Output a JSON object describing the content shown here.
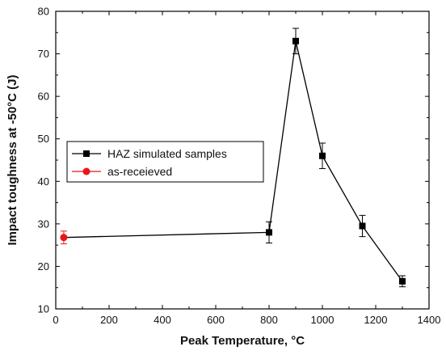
{
  "chart_data": {
    "type": "scatter",
    "xlabel": "Peak Temperature, °C",
    "ylabel": "Impact toughness at -50°C (J)",
    "xlim": [
      0,
      1400
    ],
    "ylim": [
      10,
      80
    ],
    "x_ticks": [
      0,
      200,
      400,
      600,
      800,
      1000,
      1200,
      1400
    ],
    "y_ticks": [
      10,
      20,
      30,
      40,
      50,
      60,
      70,
      80
    ],
    "grid": false,
    "legend_position": "center-left",
    "series": [
      {
        "name": "HAZ simulated samples",
        "marker": "square",
        "line": true,
        "color": "#000000",
        "points": [
          {
            "x": 800,
            "y": 28.0,
            "err": 2.5
          },
          {
            "x": 900,
            "y": 73.0,
            "err": 3.0
          },
          {
            "x": 1000,
            "y": 46.0,
            "err": 3.0
          },
          {
            "x": 1150,
            "y": 29.5,
            "err": 2.5
          },
          {
            "x": 1300,
            "y": 16.5,
            "err": 1.3
          }
        ]
      },
      {
        "name": "as-receieved",
        "marker": "circle",
        "line": false,
        "color": "#e8161b",
        "points": [
          {
            "x": 30,
            "y": 26.8,
            "err": 1.5
          }
        ]
      }
    ],
    "connector": {
      "from": [
        30,
        26.8
      ],
      "to": [
        800,
        28.0
      ],
      "color": "#000000"
    }
  }
}
